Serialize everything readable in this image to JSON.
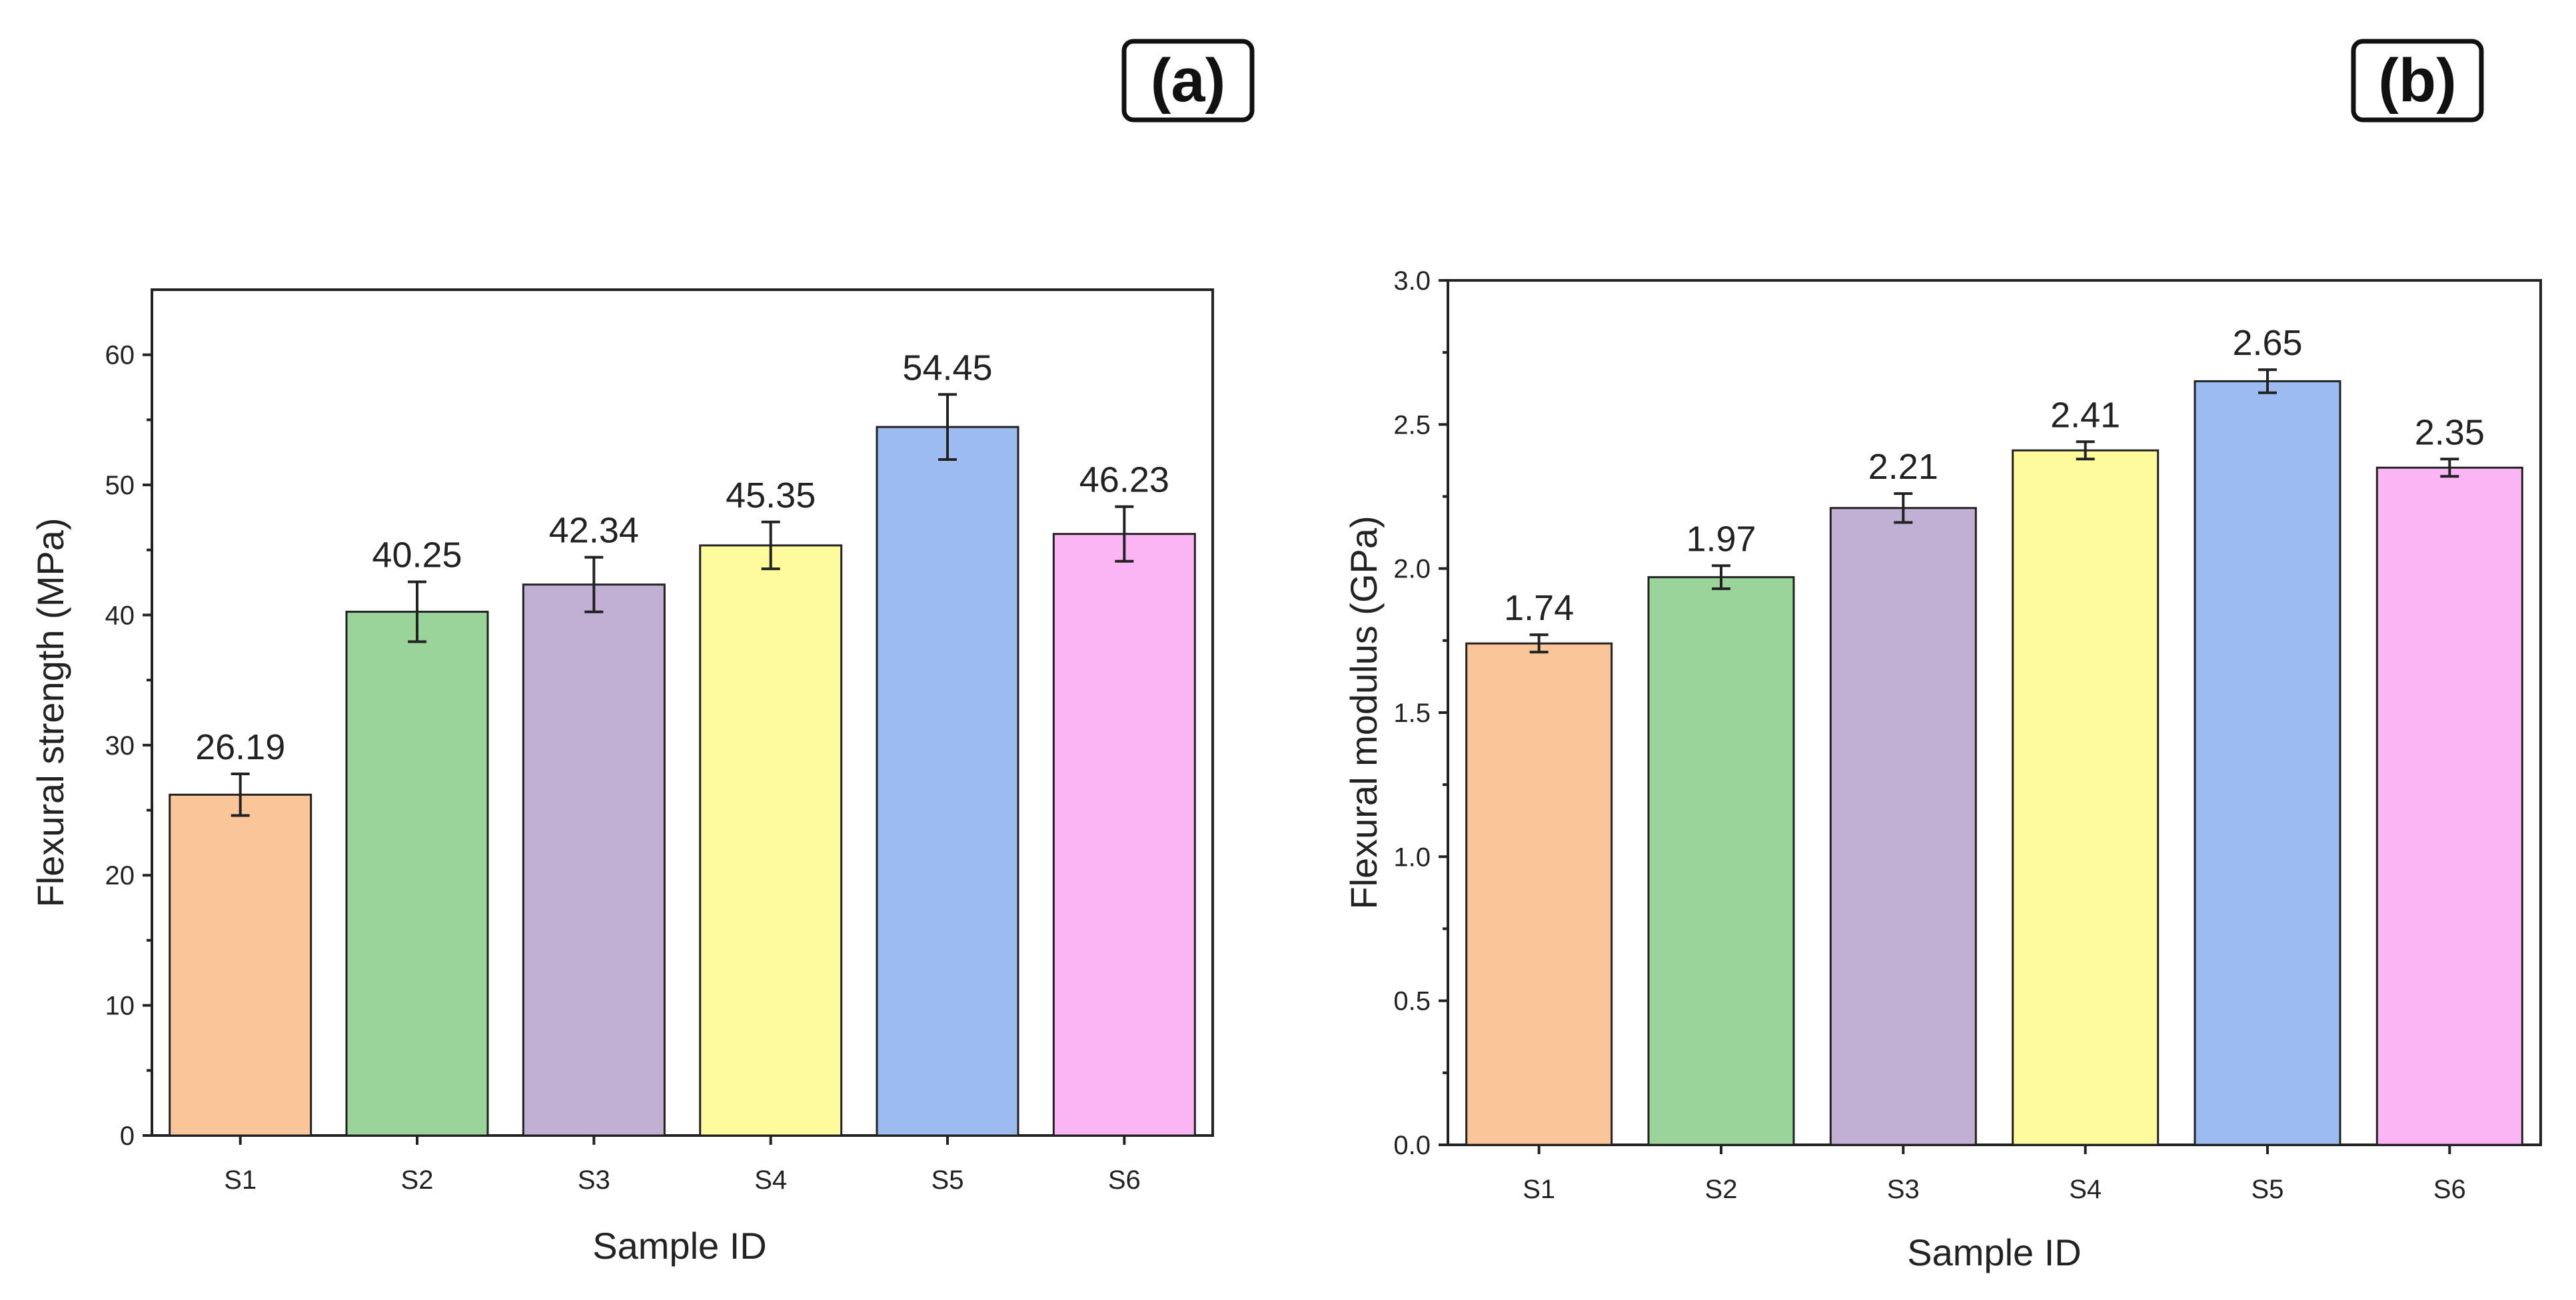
{
  "chart_data": [
    {
      "panel_label": "(a)",
      "type": "bar",
      "title": "",
      "xlabel": "Sample ID",
      "ylabel": "Flexural strength (MPa)",
      "categories": [
        "S1",
        "S2",
        "S3",
        "S4",
        "S5",
        "S6"
      ],
      "values": [
        26.19,
        40.25,
        42.34,
        45.35,
        54.45,
        46.23
      ],
      "data_labels": [
        "26.19",
        "40.25",
        "42.34",
        "45.35",
        "54.45",
        "46.23"
      ],
      "errors": [
        1.6,
        2.3,
        2.1,
        1.8,
        2.5,
        2.1
      ],
      "ylim": [
        0,
        65
      ],
      "yticks": [
        0,
        10,
        20,
        30,
        40,
        50,
        60
      ],
      "ytick_labels": [
        "0",
        "10",
        "20",
        "30",
        "40",
        "50",
        "60"
      ],
      "colors": [
        "#fac699",
        "#9ad49a",
        "#c1afd4",
        "#fdfb9b",
        "#9cbcf0",
        "#fbb5f5"
      ],
      "grid": false
    },
    {
      "panel_label": "(b)",
      "type": "bar",
      "title": "",
      "xlabel": "Sample ID",
      "ylabel": "Flexural modulus (GPa)",
      "categories": [
        "S1",
        "S2",
        "S3",
        "S4",
        "S5",
        "S6"
      ],
      "values": [
        1.74,
        1.97,
        2.21,
        2.41,
        2.65,
        2.35
      ],
      "data_labels": [
        "1.74",
        "1.97",
        "2.21",
        "2.41",
        "2.65",
        "2.35"
      ],
      "errors": [
        0.03,
        0.04,
        0.05,
        0.03,
        0.04,
        0.03
      ],
      "ylim": [
        0,
        3.0
      ],
      "yticks": [
        0,
        0.5,
        1.0,
        1.5,
        2.0,
        2.5,
        3.0
      ],
      "ytick_labels": [
        "0.0",
        "0.5",
        "1.0",
        "1.5",
        "2.0",
        "2.5",
        "3.0"
      ],
      "colors": [
        "#fac699",
        "#9ad49a",
        "#c1afd4",
        "#fdfb9b",
        "#9cbcf0",
        "#fbb5f5"
      ],
      "grid": false
    }
  ]
}
